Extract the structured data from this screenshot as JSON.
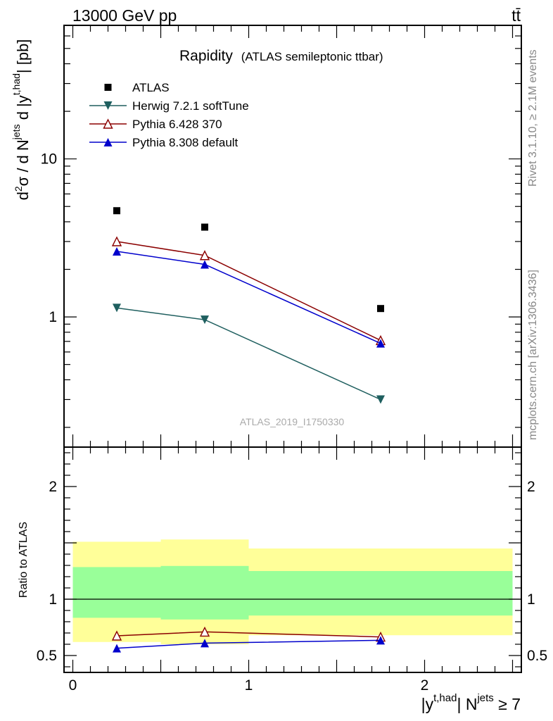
{
  "header": {
    "energy_label": "13000 GeV pp",
    "process_label": "tt̄"
  },
  "side_labels": {
    "rivet": "Rivet 3.1.10, ≥ 2.1M events",
    "mcplots": "mcplots.cern.ch [arXiv:1306.3436]"
  },
  "watermark": "ATLAS_2019_I1750330",
  "chart_data": [
    {
      "type": "scatter",
      "panel": "main",
      "title": "Rapidity",
      "subtitle": "(ATLAS semileptonic ttbar)",
      "ylabel": "d²σ / d N^jets d |y^t,had| [pb]",
      "yscale": "log",
      "ylim": [
        0.15,
        70
      ],
      "xlim": [
        -0.05,
        2.55
      ],
      "ytick_labels": [
        "1",
        "10"
      ],
      "legend_position": "top-left",
      "series": [
        {
          "name": "ATLAS",
          "marker": "square",
          "color": "#000000",
          "x": [
            0.25,
            0.75,
            1.75
          ],
          "y": [
            4.7,
            3.7,
            1.13
          ]
        },
        {
          "name": "Herwig 7.2.1 softTune",
          "marker": "triangle-down",
          "color": "#1f5f5f",
          "x": [
            0.25,
            0.75,
            1.75
          ],
          "y": [
            1.14,
            0.96,
            0.3
          ]
        },
        {
          "name": "Pythia 6.428 370",
          "marker": "triangle-up-open",
          "color": "#8b0000",
          "x": [
            0.25,
            0.75,
            1.75
          ],
          "y": [
            3.0,
            2.45,
            0.71
          ]
        },
        {
          "name": "Pythia 8.308 default",
          "marker": "triangle-up",
          "color": "#0000cc",
          "x": [
            0.25,
            0.75,
            1.75
          ],
          "y": [
            2.6,
            2.15,
            0.68
          ]
        }
      ]
    },
    {
      "type": "line",
      "panel": "ratio",
      "ylabel": "Ratio to ATLAS",
      "xlabel": "|y^t,had| N^jets ≥ 7",
      "ylim": [
        0.35,
        2.35
      ],
      "xlim": [
        -0.05,
        2.55
      ],
      "xtick_labels": [
        "0",
        "1",
        "2"
      ],
      "ytick_labels": [
        "0.5",
        "1",
        "2"
      ],
      "bands": [
        {
          "x0": 0.0,
          "x1": 0.5,
          "yellow": [
            0.62,
            1.51
          ],
          "green": [
            0.835,
            1.285
          ]
        },
        {
          "x0": 0.5,
          "x1": 1.0,
          "yellow": [
            0.6,
            1.53
          ],
          "green": [
            0.82,
            1.295
          ]
        },
        {
          "x0": 1.0,
          "x1": 2.5,
          "yellow": [
            0.68,
            1.45
          ],
          "green": [
            0.855,
            1.25
          ]
        }
      ],
      "band_colors": {
        "yellow": "#ffff99",
        "green": "#99ff99"
      },
      "series": [
        {
          "name": "Pythia 6.428 370",
          "marker": "triangle-up-open",
          "color": "#8b0000",
          "x": [
            0.25,
            0.75,
            1.75
          ],
          "y": [
            0.675,
            0.71,
            0.665
          ]
        },
        {
          "name": "Pythia 8.308 default",
          "marker": "triangle-up",
          "color": "#0000cc",
          "x": [
            0.25,
            0.75,
            1.75
          ],
          "y": [
            0.565,
            0.61,
            0.635
          ]
        }
      ]
    }
  ]
}
